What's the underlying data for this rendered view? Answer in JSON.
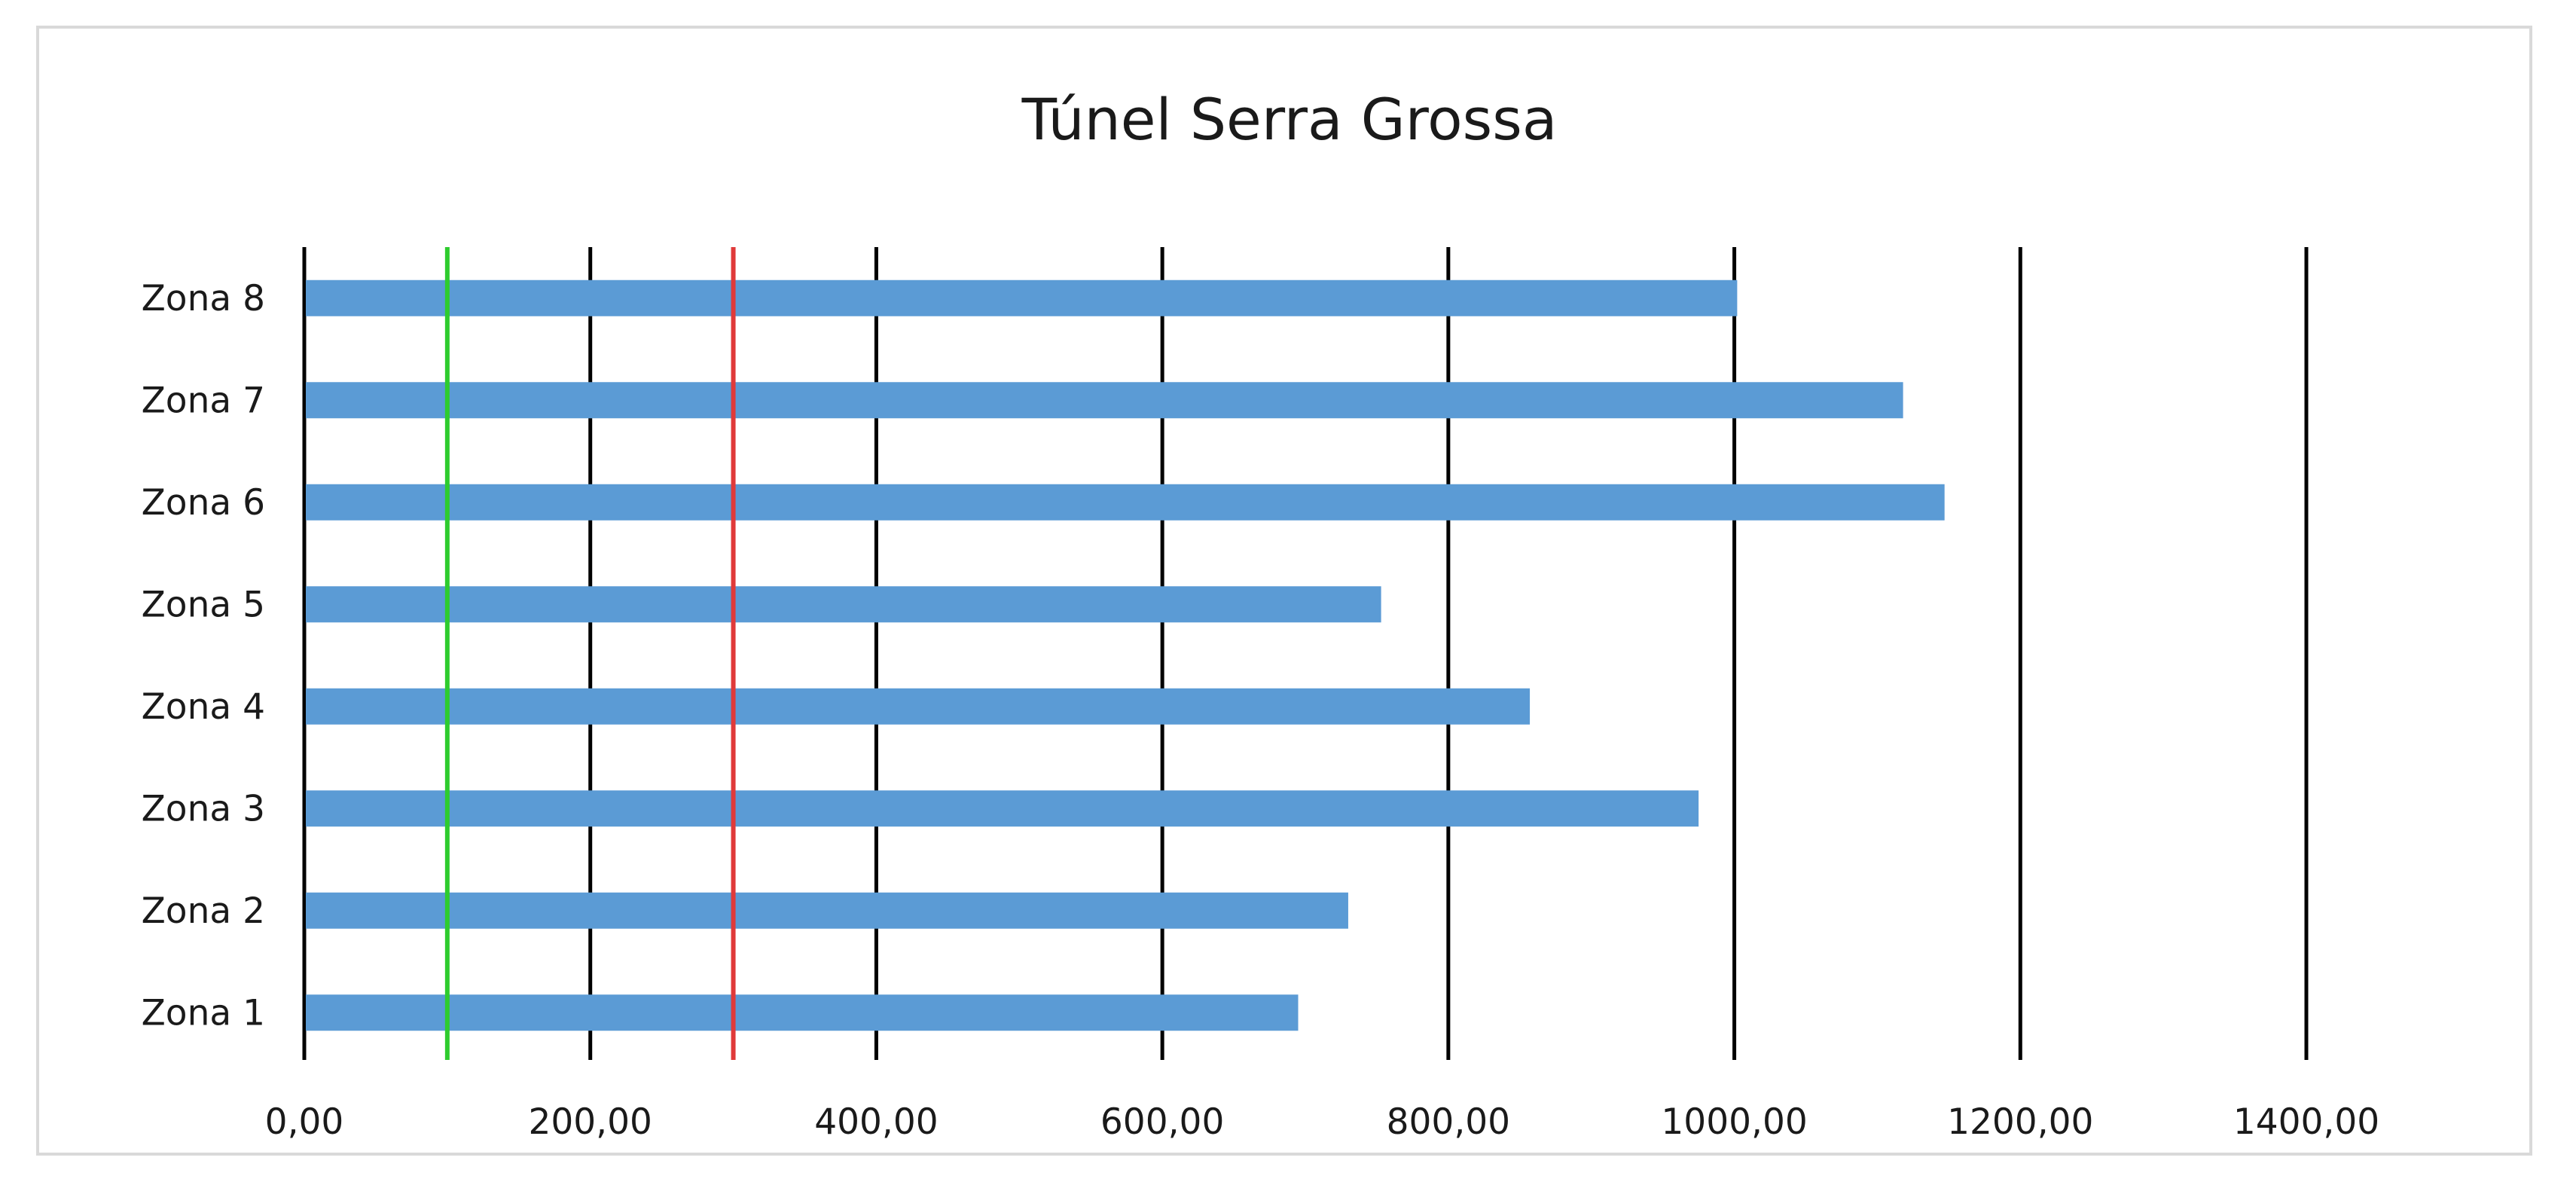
{
  "chart_data": {
    "type": "bar",
    "orientation": "horizontal",
    "title": "Túnel Serra Grossa",
    "xlabel": "",
    "ylabel": "",
    "categories": [
      "Zona 1",
      "Zona 2",
      "Zona 3",
      "Zona 4",
      "Zona 5",
      "Zona 6",
      "Zona 7",
      "Zona 8"
    ],
    "values": [
      695,
      730,
      975,
      857,
      753,
      1147,
      1118,
      1002
    ],
    "xlim": [
      0,
      1500
    ],
    "xticks": [
      0,
      200,
      400,
      600,
      800,
      1000,
      1200,
      1400
    ],
    "xtick_labels": [
      "0,00",
      "200,00",
      "400,00",
      "600,00",
      "800,00",
      "1000,00",
      "1200,00",
      "1400,00"
    ],
    "grid": "vertical",
    "legend": "none",
    "reference_lines": [
      {
        "x": 100,
        "color": "#2ecc2e"
      },
      {
        "x": 300,
        "color": "#e03a3a"
      }
    ],
    "colors": {
      "bar": "#5b9bd5",
      "gridline": "#000000",
      "frame": "#d9d9d9"
    }
  }
}
